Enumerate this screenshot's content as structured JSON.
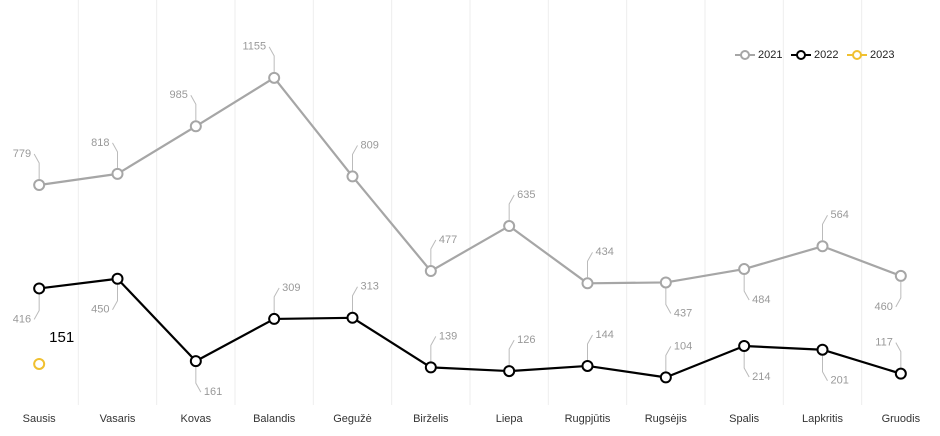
{
  "chart_data": {
    "type": "line",
    "categories": [
      "Sausis",
      "Vasaris",
      "Kovas",
      "Balandis",
      "Gegužė",
      "Birželis",
      "Liepa",
      "Rugpjūtis",
      "Rugsėjis",
      "Spalis",
      "Lapkritis",
      "Gruodis"
    ],
    "series": [
      {
        "name": "2021",
        "color": "#a6a6a6",
        "values": [
          779,
          818,
          985,
          1155,
          809,
          477,
          635,
          434,
          437,
          484,
          564,
          460
        ]
      },
      {
        "name": "2022",
        "color": "#000000",
        "values": [
          416,
          450,
          161,
          309,
          313,
          139,
          126,
          144,
          104,
          214,
          201,
          117
        ]
      },
      {
        "name": "2023",
        "color": "#f0c030",
        "values": [
          151,
          null,
          null,
          null,
          null,
          null,
          null,
          null,
          null,
          null,
          null,
          null
        ]
      }
    ],
    "ylim": [
      0,
      1400
    ],
    "legend": "top-right"
  }
}
